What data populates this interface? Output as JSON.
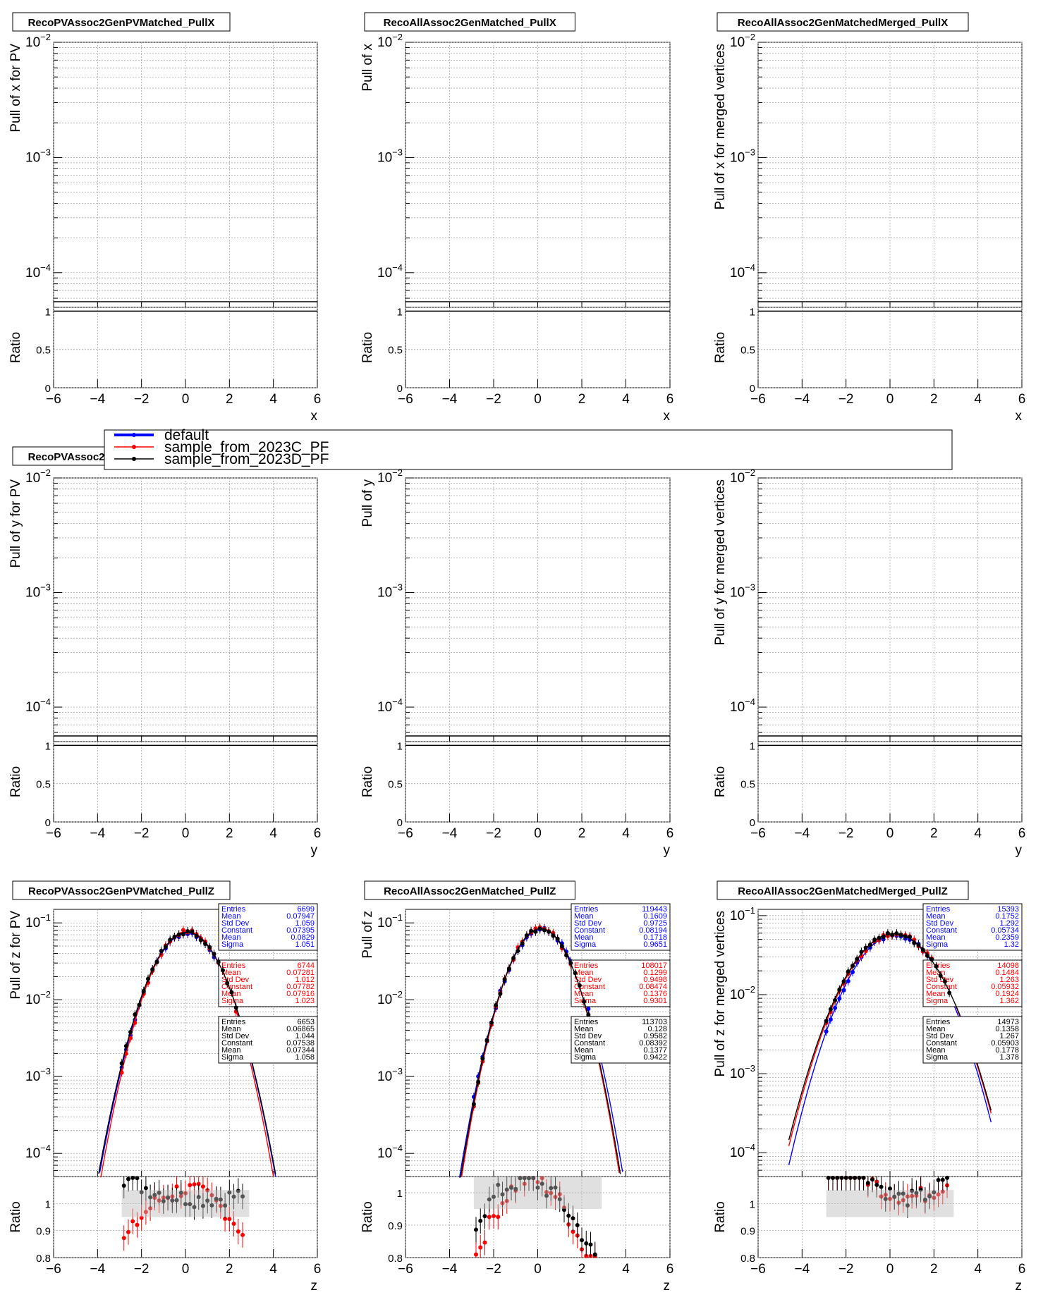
{
  "legend": {
    "entries": [
      {
        "label": "default",
        "color": "#0000ff"
      },
      {
        "label": "sample_from_2023C_PF",
        "color": "#ff0000"
      },
      {
        "label": "sample_from_2023D_PF",
        "color": "#000000"
      }
    ]
  },
  "ratio_axis_label": "Ratio",
  "chart_data": [
    {
      "type": "line",
      "title": "RecoPVAssoc2GenPVMatched_PullX",
      "xlabel": "x",
      "ylabel": "Pull of x for PV",
      "xlim": [
        -6,
        6
      ],
      "ylim": [
        5e-05,
        0.01
      ],
      "yscale": "log",
      "grid": true,
      "ratio_ylim": [
        0,
        1.05
      ],
      "series": []
    },
    {
      "type": "line",
      "title": "RecoAllAssoc2GenMatched_PullX",
      "xlabel": "x",
      "ylabel": "Pull of x",
      "xlim": [
        -6,
        6
      ],
      "ylim": [
        5e-05,
        0.01
      ],
      "yscale": "log",
      "grid": true,
      "ratio_ylim": [
        0,
        1.05
      ],
      "series": []
    },
    {
      "type": "line",
      "title": "RecoAllAssoc2GenMatchedMerged_PullX",
      "xlabel": "x",
      "ylabel": "Pull of x  for merged vertices",
      "xlim": [
        -6,
        6
      ],
      "ylim": [
        5e-05,
        0.01
      ],
      "yscale": "log",
      "grid": true,
      "ratio_ylim": [
        0,
        1.05
      ],
      "series": []
    },
    {
      "type": "line",
      "title": "RecoPVAssoc2GenPVMatched_PullY",
      "xlabel": "y",
      "ylabel": "Pull of y for PV",
      "xlim": [
        -6,
        6
      ],
      "ylim": [
        5e-05,
        0.01
      ],
      "yscale": "log",
      "grid": true,
      "ratio_ylim": [
        0,
        1.05
      ],
      "series": []
    },
    {
      "type": "line",
      "title": "",
      "xlabel": "y",
      "ylabel": "Pull of y",
      "xlim": [
        -6,
        6
      ],
      "ylim": [
        5e-05,
        0.01
      ],
      "yscale": "log",
      "grid": true,
      "ratio_ylim": [
        0,
        1.05
      ],
      "series": []
    },
    {
      "type": "line",
      "title": "",
      "xlabel": "y",
      "ylabel": "Pull of y for merged vertices",
      "xlim": [
        -6,
        6
      ],
      "ylim": [
        5e-05,
        0.01
      ],
      "yscale": "log",
      "grid": true,
      "ratio_ylim": [
        0,
        1.05
      ],
      "series": []
    },
    {
      "type": "scatter",
      "title": "RecoPVAssoc2GenPVMatched_PullZ",
      "xlabel": "z",
      "ylabel": "Pull of z for PV",
      "xlim": [
        -6,
        6
      ],
      "ylim": [
        5e-05,
        0.15
      ],
      "yscale": "log",
      "grid": true,
      "ratio_ylim": [
        0.8,
        1.1
      ],
      "series": [
        {
          "name": "default",
          "color": "#0000ff",
          "mean": 0.0829,
          "sigma": 1.051,
          "constant": 0.07395,
          "stats": [
            [
              "Entries",
              "6699"
            ],
            [
              "Mean",
              "0.07947"
            ],
            [
              "Std Dev",
              "1.059"
            ],
            [
              "Constant",
              "0.07395"
            ],
            [
              "Mean",
              "0.0829"
            ],
            [
              "Sigma",
              "1.051"
            ]
          ]
        },
        {
          "name": "sample_from_2023C_PF",
          "color": "#ff0000",
          "mean": 0.07916,
          "sigma": 1.023,
          "constant": 0.07782,
          "stats": [
            [
              "Entries",
              "6744"
            ],
            [
              "Mean",
              "0.07281"
            ],
            [
              "Std Dev",
              "1.012"
            ],
            [
              "Constant",
              "0.07782"
            ],
            [
              "Mean",
              "0.07916"
            ],
            [
              "Sigma",
              "1.023"
            ]
          ]
        },
        {
          "name": "sample_from_2023D_PF",
          "color": "#000000",
          "mean": 0.07344,
          "sigma": 1.058,
          "constant": 0.07538,
          "stats": [
            [
              "Entries",
              "6653"
            ],
            [
              "Mean",
              "0.06865"
            ],
            [
              "Std Dev",
              "1.044"
            ],
            [
              "Constant",
              "0.07538"
            ],
            [
              "Mean",
              "0.07344"
            ],
            [
              "Sigma",
              "1.058"
            ]
          ]
        }
      ]
    },
    {
      "type": "scatter",
      "title": "RecoAllAssoc2GenMatched_PullZ",
      "xlabel": "z",
      "ylabel": "Pull of z",
      "xlim": [
        -6,
        6
      ],
      "ylim": [
        5e-05,
        0.15
      ],
      "yscale": "log",
      "grid": true,
      "ratio_ylim": [
        0.8,
        1.05
      ],
      "series": [
        {
          "name": "default",
          "color": "#0000ff",
          "mean": 0.1718,
          "sigma": 0.9651,
          "constant": 0.08194,
          "stats": [
            [
              "Entries",
              "119443"
            ],
            [
              "Mean",
              "0.1609"
            ],
            [
              "Std Dev",
              "0.9725"
            ],
            [
              "Constant",
              "0.08194"
            ],
            [
              "Mean",
              "0.1718"
            ],
            [
              "Sigma",
              "0.9651"
            ]
          ]
        },
        {
          "name": "sample_from_2023C_PF",
          "color": "#ff0000",
          "mean": 0.1376,
          "sigma": 0.9301,
          "constant": 0.08474,
          "stats": [
            [
              "Entries",
              "108017"
            ],
            [
              "Mean",
              "0.1299"
            ],
            [
              "Std Dev",
              "0.9498"
            ],
            [
              "Constant",
              "0.08474"
            ],
            [
              "Mean",
              "0.1376"
            ],
            [
              "Sigma",
              "0.9301"
            ]
          ]
        },
        {
          "name": "sample_from_2023D_PF",
          "color": "#000000",
          "mean": 0.1377,
          "sigma": 0.9422,
          "constant": 0.08392,
          "stats": [
            [
              "Entries",
              "113703"
            ],
            [
              "Mean",
              "0.128"
            ],
            [
              "Std Dev",
              "0.9582"
            ],
            [
              "Constant",
              "0.08392"
            ],
            [
              "Mean",
              "0.1377"
            ],
            [
              "Sigma",
              "0.9422"
            ]
          ]
        }
      ]
    },
    {
      "type": "scatter",
      "title": "RecoAllAssoc2GenMatchedMerged_PullZ",
      "xlabel": "z",
      "ylabel": "Pull of z for merged vertices",
      "xlim": [
        -6,
        6
      ],
      "ylim": [
        5e-05,
        0.12
      ],
      "yscale": "log",
      "grid": true,
      "ratio_ylim": [
        0.8,
        1.1
      ],
      "series": [
        {
          "name": "default",
          "color": "#0000ff",
          "mean": 0.2359,
          "sigma": 1.32,
          "constant": 0.05734,
          "stats": [
            [
              "Entries",
              "15393"
            ],
            [
              "Mean",
              "0.1752"
            ],
            [
              "Std Dev",
              "1.292"
            ],
            [
              "Constant",
              "0.05734"
            ],
            [
              "Mean",
              "0.2359"
            ],
            [
              "Sigma",
              "1.32"
            ]
          ]
        },
        {
          "name": "sample_from_2023C_PF",
          "color": "#ff0000",
          "mean": 0.1924,
          "sigma": 1.362,
          "constant": 0.05932,
          "stats": [
            [
              "Entries",
              "14098"
            ],
            [
              "Mean",
              "0.1484"
            ],
            [
              "Std Dev",
              "1.263"
            ],
            [
              "Constant",
              "0.05932"
            ],
            [
              "Mean",
              "0.1924"
            ],
            [
              "Sigma",
              "1.362"
            ]
          ]
        },
        {
          "name": "sample_from_2023D_PF",
          "color": "#000000",
          "mean": 0.1778,
          "sigma": 1.378,
          "constant": 0.05903,
          "stats": [
            [
              "Entries",
              "14973"
            ],
            [
              "Mean",
              "0.1358"
            ],
            [
              "Std Dev",
              "1.267"
            ],
            [
              "Constant",
              "0.05903"
            ],
            [
              "Mean",
              "0.1778"
            ],
            [
              "Sigma",
              "1.378"
            ]
          ]
        }
      ]
    }
  ]
}
